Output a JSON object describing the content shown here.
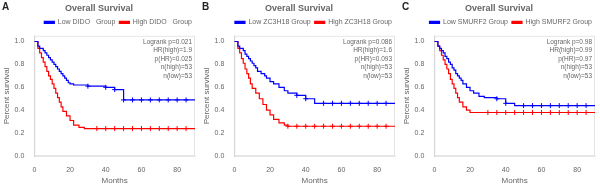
{
  "chart_data": [
    {
      "type": "step",
      "title": "Overall Survival",
      "annotations": [
        "A",
        "Logrank p=0.021\nHR(high)=1.9\np(HR)=0.025\nn(high)=53\nn(low)=53"
      ],
      "xlabel": "Months",
      "ylabel": "Percent survival",
      "xlim": [
        0,
        90
      ],
      "xticks": [
        0,
        20,
        40,
        60,
        80
      ],
      "ylim": [
        0,
        1.05
      ],
      "yticks": [
        {
          "value": 0.0,
          "label": "0.0"
        },
        0.2,
        0.4,
        0.6,
        0.8,
        {
          "value": 1.0,
          "label": "1.0"
        }
      ],
      "grid": false,
      "legend": "upper right",
      "series": [
        {
          "name": "Low DIDO   Group",
          "color": "#0000FF",
          "x": [
            0,
            2,
            3,
            5,
            6,
            7,
            8,
            9,
            10,
            11,
            12,
            13,
            14,
            15,
            16,
            17,
            18,
            19,
            20,
            22,
            23,
            25,
            28,
            30,
            35,
            38,
            40,
            45,
            50,
            55,
            60,
            65,
            70,
            75,
            80,
            85,
            90
          ],
          "values": [
            1.0,
            0.96,
            0.94,
            0.92,
            0.9,
            0.88,
            0.86,
            0.84,
            0.82,
            0.8,
            0.78,
            0.76,
            0.74,
            0.72,
            0.7,
            0.68,
            0.66,
            0.64,
            0.63,
            0.62,
            0.62,
            0.62,
            0.62,
            0.61,
            0.61,
            0.61,
            0.6,
            0.58,
            0.49,
            0.49,
            0.49,
            0.49,
            0.49,
            0.49,
            0.49,
            0.49,
            0.49
          ],
          "censors": [
            [
              30,
              0.61
            ],
            [
              40,
              0.6
            ],
            [
              45,
              0.58
            ],
            [
              50,
              0.49
            ],
            [
              55,
              0.49
            ],
            [
              60,
              0.49
            ],
            [
              65,
              0.49
            ],
            [
              70,
              0.49
            ],
            [
              75,
              0.49
            ],
            [
              80,
              0.49
            ],
            [
              85,
              0.49
            ]
          ]
        },
        {
          "name": "High DIDO   Group",
          "color": "#FF0000",
          "x": [
            0,
            2,
            3,
            4,
            5,
            6,
            7,
            8,
            9,
            10,
            11,
            12,
            13,
            14,
            15,
            16,
            18,
            20,
            22,
            25,
            28,
            30,
            35,
            40,
            45,
            50,
            55,
            60,
            65,
            70,
            75,
            80,
            85,
            90
          ],
          "values": [
            1.0,
            0.94,
            0.9,
            0.86,
            0.82,
            0.78,
            0.74,
            0.7,
            0.67,
            0.63,
            0.59,
            0.55,
            0.51,
            0.47,
            0.43,
            0.39,
            0.35,
            0.31,
            0.27,
            0.25,
            0.24,
            0.24,
            0.24,
            0.24,
            0.24,
            0.24,
            0.24,
            0.24,
            0.24,
            0.24,
            0.24,
            0.24,
            0.24,
            0.24
          ],
          "censors": [
            [
              35,
              0.24
            ],
            [
              40,
              0.24
            ],
            [
              45,
              0.24
            ],
            [
              50,
              0.24
            ],
            [
              55,
              0.24
            ],
            [
              60,
              0.24
            ],
            [
              65,
              0.24
            ],
            [
              70,
              0.24
            ],
            [
              75,
              0.24
            ],
            [
              80,
              0.24
            ],
            [
              85,
              0.24
            ]
          ]
        }
      ]
    },
    {
      "type": "step",
      "title": "Overall Survival",
      "annotations": [
        "B",
        "Logrank p=0.086\nHR(high)=1.6\np(HR)=0.093\nn(high)=53\nn(low)=53"
      ],
      "xlabel": "Months",
      "ylabel": "Percent survival",
      "xlim": [
        0,
        90
      ],
      "xticks": [
        0,
        20,
        40,
        60,
        80
      ],
      "ylim": [
        0,
        1.05
      ],
      "yticks": [
        {
          "value": 0.0,
          "label": "0.0"
        },
        0.2,
        0.4,
        0.6,
        0.8,
        {
          "value": 1.0,
          "label": "1.0"
        }
      ],
      "grid": false,
      "legend": "upper right",
      "series": [
        {
          "name": "Low ZC3H18 Group",
          "color": "#0000FF",
          "x": [
            0,
            2,
            3,
            5,
            6,
            7,
            8,
            9,
            10,
            11,
            12,
            13,
            15,
            17,
            18,
            20,
            22,
            25,
            28,
            30,
            35,
            40,
            45,
            50,
            55,
            60,
            65,
            70,
            75,
            80,
            85,
            90
          ],
          "values": [
            1.0,
            0.96,
            0.94,
            0.92,
            0.89,
            0.87,
            0.85,
            0.83,
            0.81,
            0.79,
            0.77,
            0.74,
            0.72,
            0.7,
            0.68,
            0.65,
            0.63,
            0.6,
            0.57,
            0.55,
            0.53,
            0.5,
            0.46,
            0.46,
            0.46,
            0.46,
            0.46,
            0.46,
            0.46,
            0.46,
            0.46,
            0.46
          ],
          "censors": [
            [
              35,
              0.53
            ],
            [
              40,
              0.5
            ],
            [
              50,
              0.46
            ],
            [
              55,
              0.46
            ],
            [
              60,
              0.46
            ],
            [
              65,
              0.46
            ],
            [
              70,
              0.46
            ],
            [
              75,
              0.46
            ],
            [
              80,
              0.46
            ],
            [
              85,
              0.46
            ]
          ]
        },
        {
          "name": "High ZC3H18 Group",
          "color": "#FF0000",
          "x": [
            0,
            2,
            3,
            4,
            5,
            6,
            7,
            8,
            9,
            10,
            12,
            14,
            16,
            18,
            20,
            22,
            25,
            28,
            30,
            35,
            40,
            45,
            50,
            55,
            60,
            65,
            70,
            75,
            80,
            85,
            90
          ],
          "values": [
            1.0,
            0.94,
            0.9,
            0.85,
            0.81,
            0.76,
            0.72,
            0.68,
            0.63,
            0.59,
            0.55,
            0.5,
            0.45,
            0.4,
            0.36,
            0.32,
            0.29,
            0.27,
            0.26,
            0.26,
            0.26,
            0.26,
            0.26,
            0.26,
            0.26,
            0.26,
            0.26,
            0.26,
            0.26,
            0.26,
            0.26
          ],
          "censors": [
            [
              30,
              0.26
            ],
            [
              35,
              0.26
            ],
            [
              40,
              0.26
            ],
            [
              45,
              0.26
            ],
            [
              50,
              0.26
            ],
            [
              55,
              0.26
            ],
            [
              60,
              0.26
            ],
            [
              65,
              0.26
            ],
            [
              70,
              0.26
            ],
            [
              75,
              0.26
            ],
            [
              80,
              0.26
            ],
            [
              85,
              0.26
            ]
          ]
        }
      ]
    },
    {
      "type": "step",
      "title": "Overall Survival",
      "annotations": [
        "C",
        "Logrank p=0.98\nHR(high)=0.99\np(HR)=0.97\nn(high)=53\nn(low)=53"
      ],
      "xlabel": "Months",
      "ylabel": "Percent survival",
      "xlim": [
        0,
        90
      ],
      "xticks": [
        0,
        20,
        40,
        60,
        80
      ],
      "ylim": [
        0,
        1.05
      ],
      "yticks": [
        {
          "value": 0.0,
          "label": "0.0"
        },
        0.2,
        0.4,
        0.6,
        0.8,
        {
          "value": 1.0,
          "label": "1.0"
        }
      ],
      "grid": false,
      "legend": "upper right",
      "series": [
        {
          "name": "Low SMURF2 Group",
          "color": "#0000FF",
          "x": [
            0,
            2,
            3,
            4,
            5,
            6,
            7,
            8,
            9,
            10,
            11,
            12,
            13,
            14,
            15,
            16,
            18,
            20,
            22,
            25,
            28,
            30,
            35,
            40,
            45,
            50,
            55,
            60,
            65,
            70,
            75,
            80,
            85,
            90
          ],
          "values": [
            1.0,
            0.96,
            0.94,
            0.92,
            0.9,
            0.87,
            0.85,
            0.82,
            0.8,
            0.77,
            0.75,
            0.72,
            0.7,
            0.68,
            0.66,
            0.63,
            0.6,
            0.57,
            0.55,
            0.52,
            0.51,
            0.51,
            0.5,
            0.46,
            0.44,
            0.44,
            0.44,
            0.44,
            0.44,
            0.44,
            0.44,
            0.44,
            0.44,
            0.44
          ],
          "censors": [
            [
              35,
              0.5
            ],
            [
              40,
              0.46
            ],
            [
              50,
              0.44
            ],
            [
              55,
              0.44
            ],
            [
              60,
              0.44
            ],
            [
              65,
              0.44
            ],
            [
              70,
              0.44
            ],
            [
              75,
              0.44
            ],
            [
              80,
              0.44
            ],
            [
              85,
              0.44
            ]
          ]
        },
        {
          "name": "High SMURF2 Group",
          "color": "#FF0000",
          "x": [
            0,
            2,
            3,
            4,
            5,
            6,
            7,
            8,
            9,
            10,
            11,
            12,
            13,
            14,
            16,
            18,
            20,
            22,
            25,
            28,
            30,
            35,
            40,
            45,
            50,
            55,
            60,
            65,
            70,
            75,
            80,
            85,
            90
          ],
          "values": [
            1.0,
            0.96,
            0.92,
            0.88,
            0.84,
            0.8,
            0.76,
            0.72,
            0.67,
            0.63,
            0.59,
            0.55,
            0.51,
            0.47,
            0.43,
            0.4,
            0.38,
            0.38,
            0.38,
            0.38,
            0.38,
            0.38,
            0.38,
            0.38,
            0.38,
            0.38,
            0.38,
            0.38,
            0.38,
            0.38,
            0.38,
            0.38,
            0.38
          ],
          "censors": [
            [
              30,
              0.38
            ],
            [
              35,
              0.38
            ],
            [
              40,
              0.38
            ],
            [
              45,
              0.38
            ],
            [
              50,
              0.38
            ],
            [
              55,
              0.38
            ],
            [
              60,
              0.38
            ],
            [
              65,
              0.38
            ],
            [
              70,
              0.38
            ],
            [
              75,
              0.38
            ],
            [
              80,
              0.38
            ],
            [
              85,
              0.38
            ]
          ]
        }
      ]
    }
  ]
}
